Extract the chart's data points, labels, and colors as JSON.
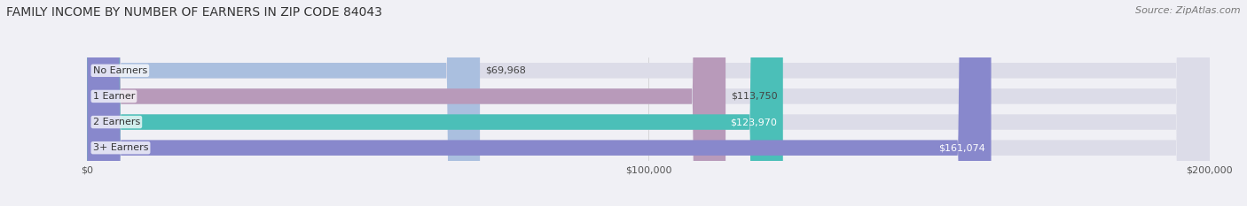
{
  "title": "FAMILY INCOME BY NUMBER OF EARNERS IN ZIP CODE 84043",
  "source": "Source: ZipAtlas.com",
  "categories": [
    "No Earners",
    "1 Earner",
    "2 Earners",
    "3+ Earners"
  ],
  "values": [
    69968,
    113750,
    123970,
    161074
  ],
  "value_labels": [
    "$69,968",
    "$113,750",
    "$123,970",
    "$161,074"
  ],
  "bar_colors": [
    "#aabfdf",
    "#b89aba",
    "#4bbfb8",
    "#8888cc"
  ],
  "bar_bg_color": "#dcdce8",
  "label_colors": [
    "#333333",
    "#333333",
    "#ffffff",
    "#ffffff"
  ],
  "xlim": [
    0,
    200000
  ],
  "xtick_labels": [
    "$0",
    "$100,000",
    "$200,000"
  ],
  "title_fontsize": 10,
  "source_fontsize": 8,
  "label_fontsize": 8,
  "value_fontsize": 8,
  "tick_fontsize": 8,
  "background_color": "#f0f0f5",
  "bar_height": 0.6
}
